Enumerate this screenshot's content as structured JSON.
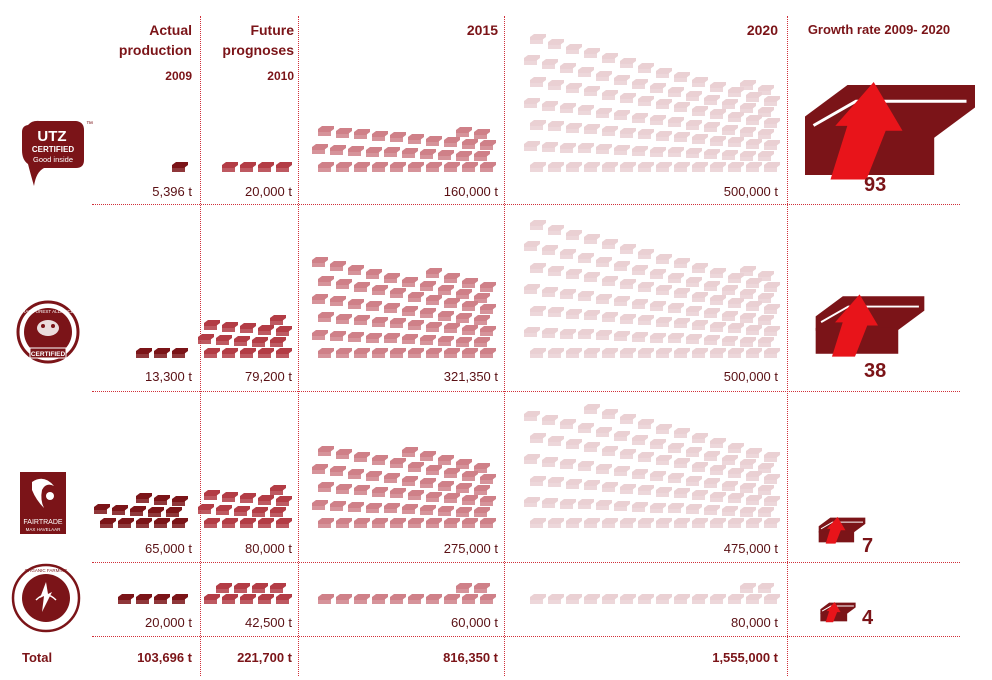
{
  "headers": {
    "actual": "Actual production",
    "actual_year": "2009",
    "future": "Future prognoses",
    "future_year": "2010",
    "y2015": "2015",
    "y2020": "2020",
    "growth": "Growth rate 2009- 2020"
  },
  "logos": {
    "utz_line1": "UTZ",
    "utz_line2": "CERTIFIED",
    "utz_line3": "Good inside",
    "utz_tm": "™",
    "rainforest": "RAINFOREST ALLIANCE",
    "rainforest_certified": "CERTIFIED",
    "fairtrade": "FAIRTRADE",
    "fairtrade_sub": "MAX HAVELAAR",
    "organic": "ORGANIC FARMING"
  },
  "rows": [
    {
      "name": "UTZ Certified",
      "v2009": "5,396 t",
      "v2010": "20,000 t",
      "v2015": "160,000 t",
      "v2020": "500,000 t",
      "growth": "93"
    },
    {
      "name": "Rainforest Alliance",
      "v2009": "13,300 t",
      "v2010": "79,200 t",
      "v2015": "321,350 t",
      "v2020": "500,000 t",
      "growth": "38"
    },
    {
      "name": "Fairtrade",
      "v2009": "65,000 t",
      "v2010": "80,000 t",
      "v2015": "275,000 t",
      "v2020": "475,000 t",
      "growth": "7"
    },
    {
      "name": "Organic",
      "v2009": "20,000 t",
      "v2010": "42,500 t",
      "v2015": "60,000 t",
      "v2020": "80,000 t",
      "growth": "4"
    }
  ],
  "totals": {
    "label": "Total",
    "v2009": "103,696 t",
    "v2010": "221,700 t",
    "v2015": "816,350 t",
    "v2020": "1,555,000 t"
  },
  "colors": {
    "dark": "#7b1418",
    "mid": "#b33c45",
    "light": "#cf8088",
    "faint": "#ead0d3",
    "arrow": "#e8141a"
  },
  "chart_data": {
    "type": "table",
    "title": "",
    "columns": [
      "Actual production 2009",
      "Future prognoses 2010",
      "2015",
      "2020",
      "Growth rate 2009- 2020"
    ],
    "series": [
      {
        "name": "UTZ Certified",
        "values": [
          5396,
          20000,
          160000,
          500000
        ],
        "growth": 93
      },
      {
        "name": "Rainforest Alliance",
        "values": [
          13300,
          79200,
          321350,
          500000
        ],
        "growth": 38
      },
      {
        "name": "Fairtrade",
        "values": [
          65000,
          80000,
          275000,
          475000
        ],
        "growth": 7
      },
      {
        "name": "Organic",
        "values": [
          20000,
          42500,
          60000,
          80000
        ],
        "growth": 4
      }
    ],
    "totals": [
      103696,
      221700,
      816350,
      1555000
    ],
    "unit": "t"
  }
}
